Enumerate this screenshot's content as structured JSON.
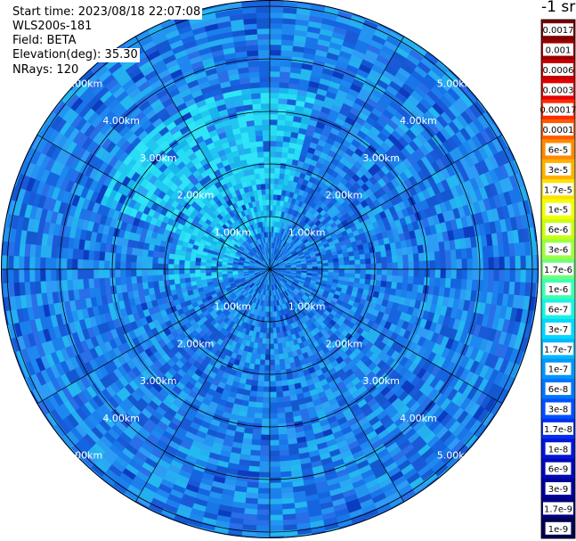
{
  "info": {
    "start_time": "Start time: 2023/08/18 22:07:08",
    "instrument": "WLS200s-181",
    "field": "Field: BETA",
    "elevation": "Elevation(deg): 35.30",
    "nrays": "NRays: 120"
  },
  "colorbar": {
    "unit_title": "-1 sr",
    "labels": [
      "0.0017",
      "0.001",
      "0.0006",
      "0.0003",
      "0.00017",
      "0.0001",
      "6e-5",
      "3e-5",
      "1.7e-5",
      "1e-5",
      "6e-6",
      "3e-6",
      "1.7e-6",
      "1e-6",
      "6e-7",
      "3e-7",
      "1.7e-7",
      "1e-7",
      "6e-8",
      "3e-8",
      "1.7e-8",
      "1e-8",
      "6e-9",
      "3e-9",
      "1.7e-9",
      "1e-9"
    ],
    "colors": [
      "#7a0000",
      "#9c0000",
      "#c40000",
      "#e20000",
      "#ff2a00",
      "#ff5a00",
      "#ff8a00",
      "#ffb000",
      "#ffe000",
      "#f2ff00",
      "#caff10",
      "#9cff40",
      "#6cff7a",
      "#3cffb0",
      "#18f2e0",
      "#00d8ff",
      "#00b8ff",
      "#0096ff",
      "#0076ff",
      "#0050ff",
      "#0030f0",
      "#0016d8",
      "#0008b8",
      "#000098",
      "#000078",
      "#000050"
    ]
  },
  "ring_labels": [
    "1.00km",
    "2.00km",
    "3.00km",
    "4.00km",
    "5.00km"
  ],
  "chart_data": {
    "type": "heatmap",
    "projection": "polar",
    "field": "BETA",
    "nrays": 120,
    "range_rings_km": [
      1,
      2,
      3,
      4,
      5
    ],
    "max_range_km": 5.0,
    "spokes": 12,
    "dominant_level": "1e-7",
    "enhanced_sector_level": "3e-7",
    "colors": {
      "background_field": "#1976e8",
      "enhanced": "#1fd4f0",
      "grid": "#000000"
    }
  }
}
